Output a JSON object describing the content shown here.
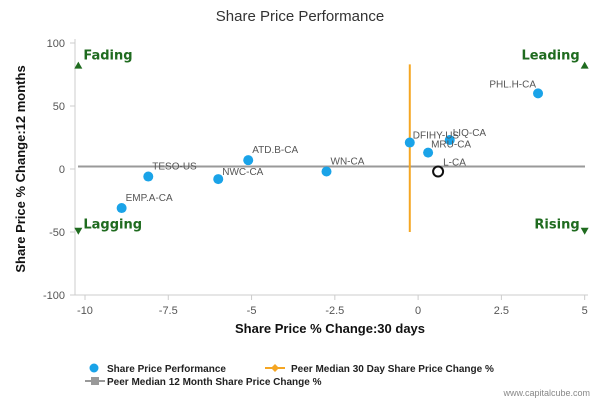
{
  "chart_data": {
    "type": "scatter",
    "title": "Share Price Performance",
    "xlabel": "Share Price % Change:30 days",
    "ylabel": "Share Price % Change:12 months",
    "xlim": [
      -10.3,
      5.1
    ],
    "ylim": [
      -100,
      100
    ],
    "xticks": [
      -10,
      -7.5,
      -5,
      -2.5,
      0,
      2.5,
      5
    ],
    "xtick_labels": [
      "-10",
      "-7.5",
      "-5",
      "-2.5",
      "0",
      "2.5",
      "5"
    ],
    "yticks": [
      100,
      50,
      0,
      -50,
      -100
    ],
    "ytick_labels": [
      "100",
      "50",
      "0",
      "-50",
      "-100"
    ],
    "grid": false,
    "legend_position": "bottom-left",
    "series": [
      {
        "name": "Share Price Performance",
        "color": "#1aa3e8",
        "points": [
          {
            "label": "PHL.H-CA",
            "x": 3.6,
            "y": 60
          },
          {
            "label": "LIQ-CA",
            "x": 0.95,
            "y": 23
          },
          {
            "label": "DFIHY-US",
            "x": -0.25,
            "y": 21
          },
          {
            "label": "MRU-CA",
            "x": 0.3,
            "y": 13
          },
          {
            "label": "ATD.B-CA",
            "x": -5.1,
            "y": 7
          },
          {
            "label": "WN-CA",
            "x": -2.75,
            "y": -2
          },
          {
            "label": "TESO-US",
            "x": -8.1,
            "y": -6
          },
          {
            "label": "NWC-CA",
            "x": -6.0,
            "y": -8
          },
          {
            "label": "EMP.A-CA",
            "x": -8.9,
            "y": -31
          }
        ]
      }
    ],
    "highlight": {
      "label": "L-CA",
      "x": 0.6,
      "y": -2
    },
    "peer_median_30d": {
      "name": "Peer Median 30 Day Share Price Change %",
      "x": -0.25,
      "y_range": [
        -50,
        83
      ],
      "color": "#f5a623"
    },
    "peer_median_12m": {
      "name": "Peer Median 12 Month Share Price Change %",
      "y": 2,
      "color": "#999999"
    },
    "quadrants": [
      {
        "label": "Fading",
        "x": -10.2,
        "y": 82,
        "align": "left",
        "arrow": "up"
      },
      {
        "label": "Leading",
        "x": 5.0,
        "y": 82,
        "align": "right",
        "arrow": "up"
      },
      {
        "label": "Lagging",
        "x": -10.2,
        "y": -49,
        "align": "left",
        "arrow": "down"
      },
      {
        "label": "Rising",
        "x": 5.0,
        "y": -49,
        "align": "right",
        "arrow": "down"
      }
    ],
    "colors": {
      "quadrant": "#1f6b1f",
      "axis": "#cccccc"
    }
  },
  "credit": "www.capitalcube.com"
}
